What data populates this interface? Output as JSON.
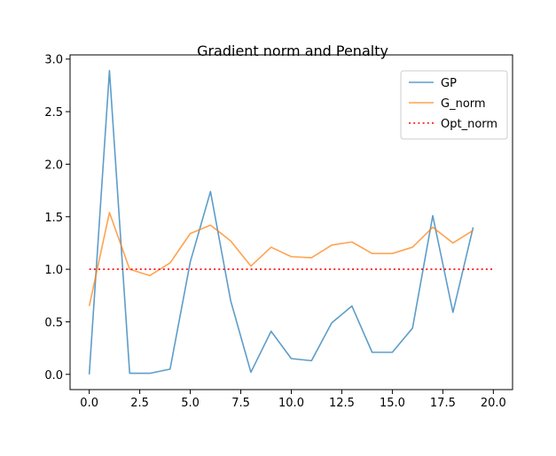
{
  "chart_data": {
    "type": "line",
    "title": "Gradient norm and Penalty",
    "xlabel": "",
    "ylabel": "",
    "xlim": [
      -0.95,
      20.95
    ],
    "ylim": [
      -0.145,
      3.04
    ],
    "xticks": [
      0,
      2.5,
      5,
      7.5,
      10,
      12.5,
      15,
      17.5,
      20
    ],
    "xtick_labels": [
      "0.0",
      "2.5",
      "5.0",
      "7.5",
      "10.0",
      "12.5",
      "15.0",
      "17.5",
      "20.0"
    ],
    "yticks": [
      0,
      0.5,
      1,
      1.5,
      2,
      2.5,
      3
    ],
    "ytick_labels": [
      "0.0",
      "0.5",
      "1.0",
      "1.5",
      "2.0",
      "2.5",
      "3.0"
    ],
    "grid": false,
    "legend_position": "top-right",
    "series": [
      {
        "name": "GP",
        "color": "#1f77b4",
        "style": "solid",
        "x": [
          0,
          1,
          2,
          3,
          4,
          5,
          6,
          7,
          8,
          9,
          10,
          11,
          12,
          13,
          14,
          15,
          16,
          17,
          18,
          19
        ],
        "y": [
          0.0,
          2.89,
          0.01,
          0.01,
          0.05,
          1.07,
          1.74,
          0.7,
          0.02,
          0.41,
          0.15,
          0.13,
          0.49,
          0.65,
          0.21,
          0.21,
          0.44,
          1.51,
          0.59,
          1.4
        ]
      },
      {
        "name": "G_norm",
        "color": "#ff7f0e",
        "style": "solid",
        "x": [
          0,
          1,
          2,
          3,
          4,
          5,
          6,
          7,
          8,
          9,
          10,
          11,
          12,
          13,
          14,
          15,
          16,
          17,
          18,
          19
        ],
        "y": [
          0.65,
          1.54,
          1.0,
          0.94,
          1.06,
          1.34,
          1.42,
          1.27,
          1.03,
          1.21,
          1.12,
          1.11,
          1.23,
          1.26,
          1.15,
          1.15,
          1.21,
          1.4,
          1.25,
          1.37
        ]
      },
      {
        "name": "Opt_norm",
        "color": "#ff0000",
        "style": "dotted",
        "x": [
          0,
          20
        ],
        "y": [
          1.0,
          1.0
        ]
      }
    ]
  }
}
